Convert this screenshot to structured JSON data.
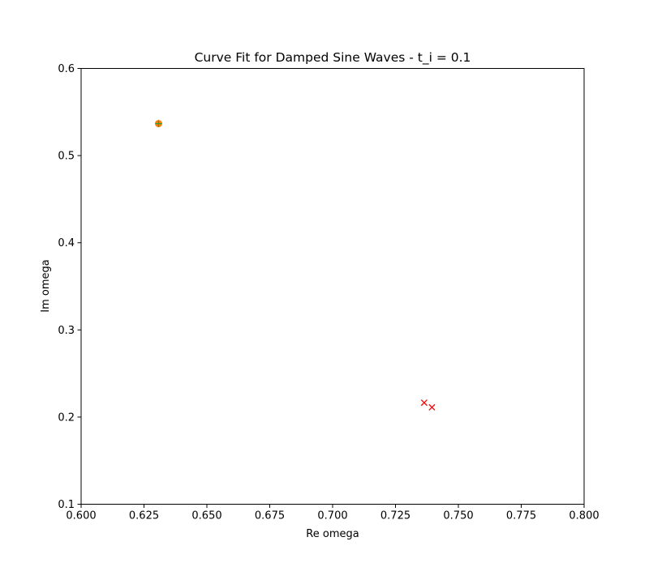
{
  "chart_data": {
    "type": "scatter",
    "title": "Curve Fit for Damped Sine Waves - t_i = 0.1",
    "xlabel": "Re omega",
    "ylabel": "Im omega",
    "xlim": [
      0.6,
      0.8
    ],
    "ylim": [
      0.1,
      0.6
    ],
    "xticks": [
      0.6,
      0.625,
      0.65,
      0.675,
      0.7,
      0.725,
      0.75,
      0.775,
      0.8
    ],
    "xtick_labels": [
      "0.600",
      "0.625",
      "0.650",
      "0.675",
      "0.700",
      "0.725",
      "0.750",
      "0.775",
      "0.800"
    ],
    "yticks": [
      0.1,
      0.2,
      0.3,
      0.4,
      0.5,
      0.6
    ],
    "ytick_labels": [
      "0.1",
      "0.2",
      "0.3",
      "0.4",
      "0.5",
      "0.6"
    ],
    "grid": false,
    "series": [
      {
        "marker": "circle",
        "color": "#ff7f0e",
        "points": [
          [
            0.6308,
            0.5367
          ]
        ]
      },
      {
        "marker": "plus",
        "color": "#2ca02c",
        "points": [
          [
            0.6308,
            0.5367
          ]
        ]
      },
      {
        "marker": "x",
        "color": "#ff0000",
        "points": [
          [
            0.7364,
            0.2165
          ],
          [
            0.7395,
            0.2112
          ]
        ]
      }
    ]
  }
}
